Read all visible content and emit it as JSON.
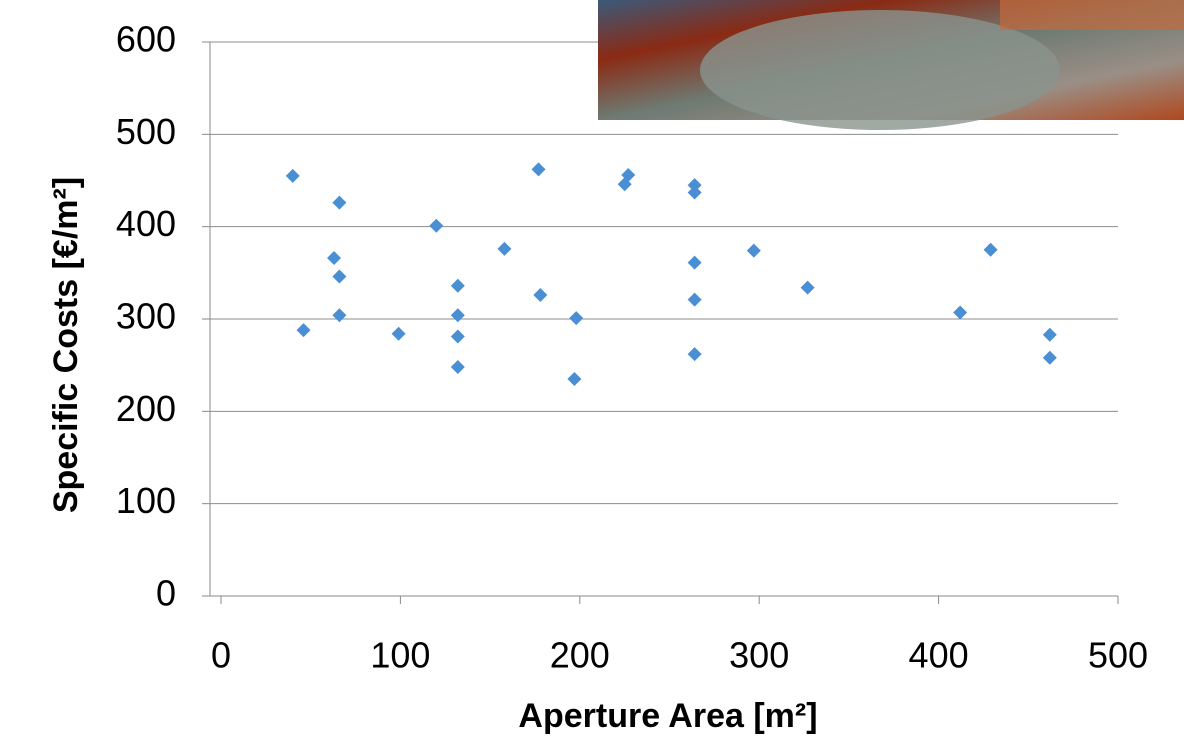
{
  "chart_data": {
    "type": "scatter",
    "xlabel": "Aperture Area [m²]",
    "ylabel": "Specific Costs [€/m²]",
    "x": [
      40,
      46,
      66,
      63,
      66,
      66,
      99,
      120,
      132,
      132,
      132,
      132,
      158,
      177,
      178,
      198,
      197,
      225,
      227,
      264,
      264,
      264,
      264,
      264,
      297,
      327,
      412,
      429,
      462,
      462
    ],
    "values": [
      455,
      288,
      426,
      366,
      346,
      304,
      284,
      401,
      336,
      304,
      281,
      248,
      376,
      462,
      326,
      301,
      235,
      446,
      456,
      445,
      437,
      361,
      321,
      262,
      374,
      334,
      307,
      375,
      283,
      258
    ],
    "color": "#4a8fd4",
    "xlim": [
      0,
      500
    ],
    "xticks": [
      0,
      100,
      200,
      300,
      400,
      500
    ],
    "ylim": [
      0,
      600
    ],
    "yticks": [
      0,
      100,
      200,
      300,
      400,
      500,
      600
    ],
    "grid": true
  }
}
